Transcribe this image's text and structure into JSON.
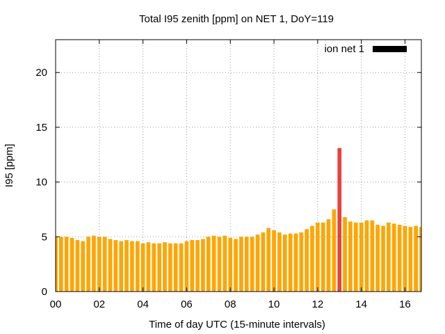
{
  "chart_data": {
    "type": "bar",
    "title": "Total I95 zenith [ppm] on NET 1, DoY=119",
    "xlabel": "Time of day UTC (15-minute intervals)",
    "ylabel": "I95 [ppm]",
    "xlim": [
      0,
      16.75
    ],
    "ylim": [
      0,
      23
    ],
    "x_tick_labels": [
      "00",
      "02",
      "04",
      "06",
      "08",
      "10",
      "12",
      "14",
      "16"
    ],
    "y_tick_labels": [
      "0",
      "5",
      "10",
      "15",
      "20"
    ],
    "grid": true,
    "legend_position": "top-right",
    "series": [
      {
        "name": "ion net 1",
        "color": "#000000",
        "normal_bar_color": "#ffa500",
        "highlight_bar_color": "#e8413a",
        "highlight_index": 52,
        "x": [
          0.0,
          0.25,
          0.5,
          0.75,
          1.0,
          1.25,
          1.5,
          1.75,
          2.0,
          2.25,
          2.5,
          2.75,
          3.0,
          3.25,
          3.5,
          3.75,
          4.0,
          4.25,
          4.5,
          4.75,
          5.0,
          5.25,
          5.5,
          5.75,
          6.0,
          6.25,
          6.5,
          6.75,
          7.0,
          7.25,
          7.5,
          7.75,
          8.0,
          8.25,
          8.5,
          8.75,
          9.0,
          9.25,
          9.5,
          9.75,
          10.0,
          10.25,
          10.5,
          10.75,
          11.0,
          11.25,
          11.5,
          11.75,
          12.0,
          12.25,
          12.5,
          12.75,
          13.0,
          13.25,
          13.5,
          13.75,
          14.0,
          14.25,
          14.5,
          14.75,
          15.0,
          15.25,
          15.5,
          15.75,
          16.0,
          16.25,
          16.5,
          16.75
        ],
        "values": [
          5.0,
          5.0,
          5.0,
          4.9,
          4.7,
          4.6,
          5.0,
          5.1,
          5.0,
          5.0,
          4.8,
          4.7,
          4.6,
          4.7,
          4.6,
          4.6,
          4.4,
          4.5,
          4.4,
          4.4,
          4.5,
          4.4,
          4.4,
          4.4,
          4.6,
          4.7,
          4.7,
          4.8,
          5.0,
          5.1,
          5.0,
          5.1,
          4.9,
          4.8,
          5.0,
          5.0,
          5.0,
          5.2,
          5.4,
          5.8,
          5.6,
          5.4,
          5.2,
          5.3,
          5.3,
          5.4,
          5.7,
          6.0,
          6.3,
          6.3,
          6.6,
          7.5,
          13.1,
          6.8,
          6.4,
          6.3,
          6.3,
          6.5,
          6.5,
          6.1,
          6.0,
          6.3,
          6.2,
          6.1,
          6.0,
          5.9,
          6.0,
          5.9
        ]
      }
    ]
  }
}
